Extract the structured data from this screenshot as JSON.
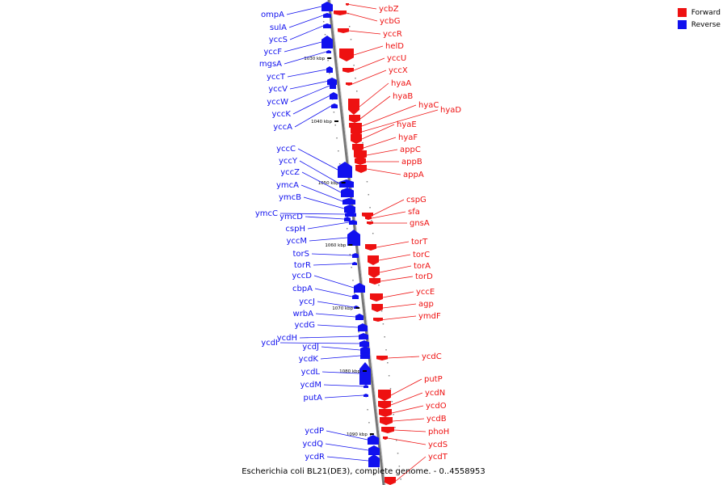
{
  "legend": [
    {
      "label": "Forward",
      "color": "#ee1111"
    },
    {
      "label": "Reverse",
      "color": "#1111ee"
    }
  ],
  "caption": "Escherichia coli BL21(DE3), complete genome. - 0..4558953",
  "colors": {
    "forward": "#ee1111",
    "reverse": "#1111ee",
    "backbone": "#777777",
    "tick": "#000000"
  },
  "ticks": [
    {
      "label": "1030 kbp",
      "kbp": 1030
    },
    {
      "label": "1040 kbp",
      "kbp": 1040
    },
    {
      "label": "1050 kbp",
      "kbp": 1050
    },
    {
      "label": "1060 kbp",
      "kbp": 1060
    },
    {
      "label": "1070 kbp",
      "kbp": 1070
    },
    {
      "label": "1080 kbp",
      "kbp": 1080
    },
    {
      "label": "1090 kbp",
      "kbp": 1090
    }
  ],
  "reverse_genes": [
    {
      "name": "ompA"
    },
    {
      "name": "sulA"
    },
    {
      "name": "yccS"
    },
    {
      "name": "yccF"
    },
    {
      "name": "mgsA"
    },
    {
      "name": "yccT"
    },
    {
      "name": "yccV"
    },
    {
      "name": "yccW"
    },
    {
      "name": "yccK"
    },
    {
      "name": "yccA"
    },
    {
      "name": "yccC"
    },
    {
      "name": "yccY"
    },
    {
      "name": "yccZ"
    },
    {
      "name": "ymcA"
    },
    {
      "name": "ymcB"
    },
    {
      "name": "ymcC"
    },
    {
      "name": "ymcD"
    },
    {
      "name": "cspH"
    },
    {
      "name": "yccM"
    },
    {
      "name": "torS"
    },
    {
      "name": "torR"
    },
    {
      "name": "yccD"
    },
    {
      "name": "cbpA"
    },
    {
      "name": "yccJ"
    },
    {
      "name": "wrbA"
    },
    {
      "name": "ycdG"
    },
    {
      "name": "ycdH"
    },
    {
      "name": "ycdI"
    },
    {
      "name": "ycdJ"
    },
    {
      "name": "ycdK"
    },
    {
      "name": "ycdL"
    },
    {
      "name": "ycdM"
    },
    {
      "name": "putA"
    },
    {
      "name": "ycdP"
    },
    {
      "name": "ycdQ"
    },
    {
      "name": "ycdR"
    }
  ],
  "forward_genes": [
    {
      "name": "ycbZ"
    },
    {
      "name": "ycbG"
    },
    {
      "name": "yccR"
    },
    {
      "name": "helD"
    },
    {
      "name": "yccU"
    },
    {
      "name": "yccX"
    },
    {
      "name": "hyaA"
    },
    {
      "name": "hyaB"
    },
    {
      "name": "hyaC"
    },
    {
      "name": "hyaD"
    },
    {
      "name": "hyaE"
    },
    {
      "name": "hyaF"
    },
    {
      "name": "appC"
    },
    {
      "name": "appB"
    },
    {
      "name": "appA"
    },
    {
      "name": "cspG"
    },
    {
      "name": "sfa"
    },
    {
      "name": "gnsA"
    },
    {
      "name": "torT"
    },
    {
      "name": "torC"
    },
    {
      "name": "torA"
    },
    {
      "name": "torD"
    },
    {
      "name": "yccE"
    },
    {
      "name": "agp"
    },
    {
      "name": "ymdF"
    },
    {
      "name": "ycdC"
    },
    {
      "name": "putP"
    },
    {
      "name": "ycdN"
    },
    {
      "name": "ycdO"
    },
    {
      "name": "ycdB"
    },
    {
      "name": "phoH"
    },
    {
      "name": "ycdS"
    },
    {
      "name": "ycdT"
    }
  ]
}
